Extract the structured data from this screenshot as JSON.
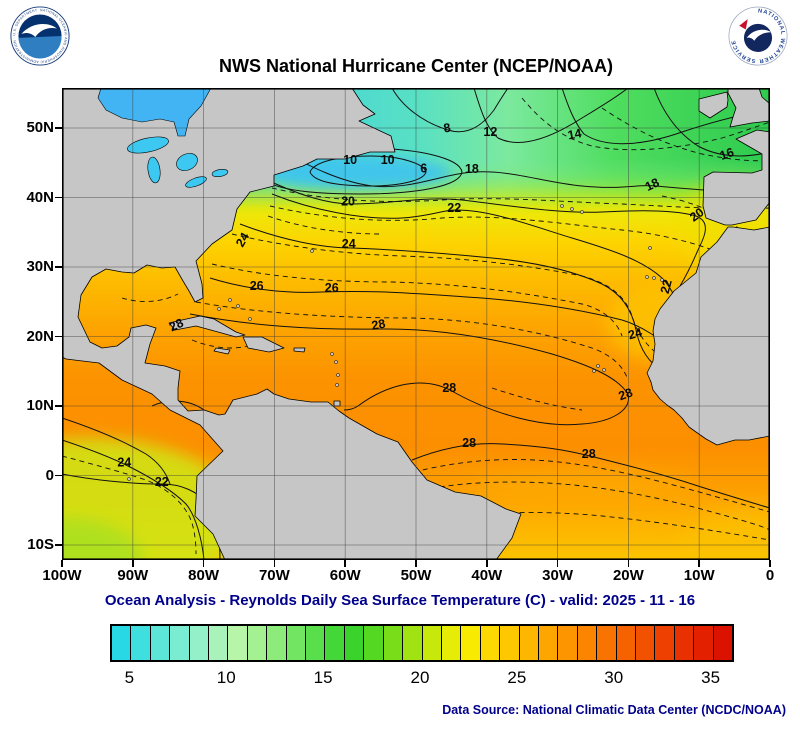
{
  "header": {
    "title": "NWS National Hurricane Center (NCEP/NOAA)"
  },
  "subtitle": "Ocean Analysis - Reynolds Daily Sea Surface Temperature (C) - valid: 2025 - 11 - 16",
  "footer": {
    "data_source": "Data Source: National Climatic Data Center (NCDC/NOAA)"
  },
  "logos": {
    "noaa_alt": "NOAA",
    "nws_alt": "National Weather Service",
    "noaa_ring_text": "NATIONAL OCEANIC AND ATMOSPHERIC ADMINISTRATION · U.S. DEPARTMENT OF COMMERCE",
    "nws_ring_text": "NATIONAL WEATHER SERVICE"
  },
  "map": {
    "land_color": "#c6c6c6",
    "grid_color": "rgba(60,60,60,0.55)",
    "frame_color": "#000000",
    "x_axis": [
      {
        "lon": -100,
        "label": "100W"
      },
      {
        "lon": -90,
        "label": "90W"
      },
      {
        "lon": -80,
        "label": "80W"
      },
      {
        "lon": -70,
        "label": "70W"
      },
      {
        "lon": -60,
        "label": "60W"
      },
      {
        "lon": -50,
        "label": "50W"
      },
      {
        "lon": -40,
        "label": "40W"
      },
      {
        "lon": -30,
        "label": "30W"
      },
      {
        "lon": -20,
        "label": "20W"
      },
      {
        "lon": -10,
        "label": "10W"
      },
      {
        "lon": 0,
        "label": "0"
      }
    ],
    "y_axis": [
      {
        "lat": 50,
        "label": "50N"
      },
      {
        "lat": 40,
        "label": "40N"
      },
      {
        "lat": 30,
        "label": "30N"
      },
      {
        "lat": 20,
        "label": "20N"
      },
      {
        "lat": 10,
        "label": "10N"
      },
      {
        "lat": 0,
        "label": "0"
      },
      {
        "lat": -10,
        "label": "10S"
      }
    ]
  },
  "colorbar": {
    "min": 4,
    "max": 36,
    "ticks": [
      5,
      10,
      15,
      20,
      25,
      30,
      35
    ],
    "colors": [
      "#29d8e5",
      "#3fdfdf",
      "#5ce6d8",
      "#79ecd1",
      "#93f0c8",
      "#a9f3bb",
      "#b7f5a9",
      "#a4f192",
      "#8ceb7a",
      "#72e562",
      "#59df4c",
      "#43d838",
      "#3ad32b",
      "#55d822",
      "#7add19",
      "#a0e212",
      "#c6e80b",
      "#e6ec05",
      "#f8ea00",
      "#fcd900",
      "#fdc800",
      "#fdb700",
      "#fda600",
      "#fd9500",
      "#fb8400",
      "#f97300",
      "#f66200",
      "#f25100",
      "#ee4000",
      "#e93000",
      "#e32100",
      "#dc1200"
    ]
  },
  "chart_data": {
    "type": "heatmap",
    "title": "NWS National Hurricane Center (NCEP/NOAA)",
    "subtitle": "Ocean Analysis - Reynolds Daily Sea Surface Temperature (C)",
    "variable": "sea_surface_temperature",
    "units": "C",
    "valid_date": "2025 - 11 - 16",
    "region": {
      "lon_min": -100,
      "lon_max": 0,
      "lat_min": -12,
      "lat_max": 56
    },
    "contour_interval_c": 2,
    "colorbar_range_c": [
      4,
      36
    ],
    "colorbar_ticks_c": [
      5,
      10,
      15,
      20,
      25,
      30,
      35
    ],
    "contour_labels": [
      {
        "value": 8,
        "lon": -45.5,
        "lat": 50.0,
        "rot": -10
      },
      {
        "value": 12,
        "lon": -39.5,
        "lat": 49.4,
        "rot": 0
      },
      {
        "value": 14,
        "lon": -27.5,
        "lat": 49.1,
        "rot": -10
      },
      {
        "value": 16,
        "lon": -5.9,
        "lat": 46.3,
        "rot": -20
      },
      {
        "value": 10,
        "lon": -59.3,
        "lat": 45.4,
        "rot": 0
      },
      {
        "value": 10,
        "lon": -54.0,
        "lat": 45.4,
        "rot": 0
      },
      {
        "value": 6,
        "lon": -48.9,
        "lat": 44.2,
        "rot": 0
      },
      {
        "value": 18,
        "lon": -42.1,
        "lat": 44.1,
        "rot": 0
      },
      {
        "value": 18,
        "lon": -16.4,
        "lat": 41.9,
        "rot": -25
      },
      {
        "value": 20,
        "lon": -59.6,
        "lat": 39.4,
        "rot": 0
      },
      {
        "value": 22,
        "lon": -44.6,
        "lat": 38.5,
        "rot": 0
      },
      {
        "value": 20,
        "lon": -10.0,
        "lat": 37.6,
        "rot": -35
      },
      {
        "value": 24,
        "lon": -74.0,
        "lat": 34.2,
        "rot": -60
      },
      {
        "value": 24,
        "lon": -59.5,
        "lat": 33.3,
        "rot": 0
      },
      {
        "value": 22,
        "lon": -14.1,
        "lat": 27.6,
        "rot": -75
      },
      {
        "value": 26,
        "lon": -72.5,
        "lat": 27.3,
        "rot": 0
      },
      {
        "value": 26,
        "lon": -61.9,
        "lat": 27.0,
        "rot": 0
      },
      {
        "value": 28,
        "lon": -83.6,
        "lat": 21.7,
        "rot": -25
      },
      {
        "value": 28,
        "lon": -55.2,
        "lat": 21.7,
        "rot": -10
      },
      {
        "value": 24,
        "lon": -18.9,
        "lat": 20.4,
        "rot": -15
      },
      {
        "value": 28,
        "lon": -45.3,
        "lat": 12.6,
        "rot": 0
      },
      {
        "value": 28,
        "lon": -20.2,
        "lat": 11.7,
        "rot": -20
      },
      {
        "value": 28,
        "lon": -42.5,
        "lat": 4.7,
        "rot": 0
      },
      {
        "value": 28,
        "lon": -25.6,
        "lat": 3.1,
        "rot": 0
      },
      {
        "value": 24,
        "lon": -91.2,
        "lat": 1.9,
        "rot": 0
      },
      {
        "value": 22,
        "lon": -85.9,
        "lat": -0.9,
        "rot": 0
      }
    ]
  }
}
